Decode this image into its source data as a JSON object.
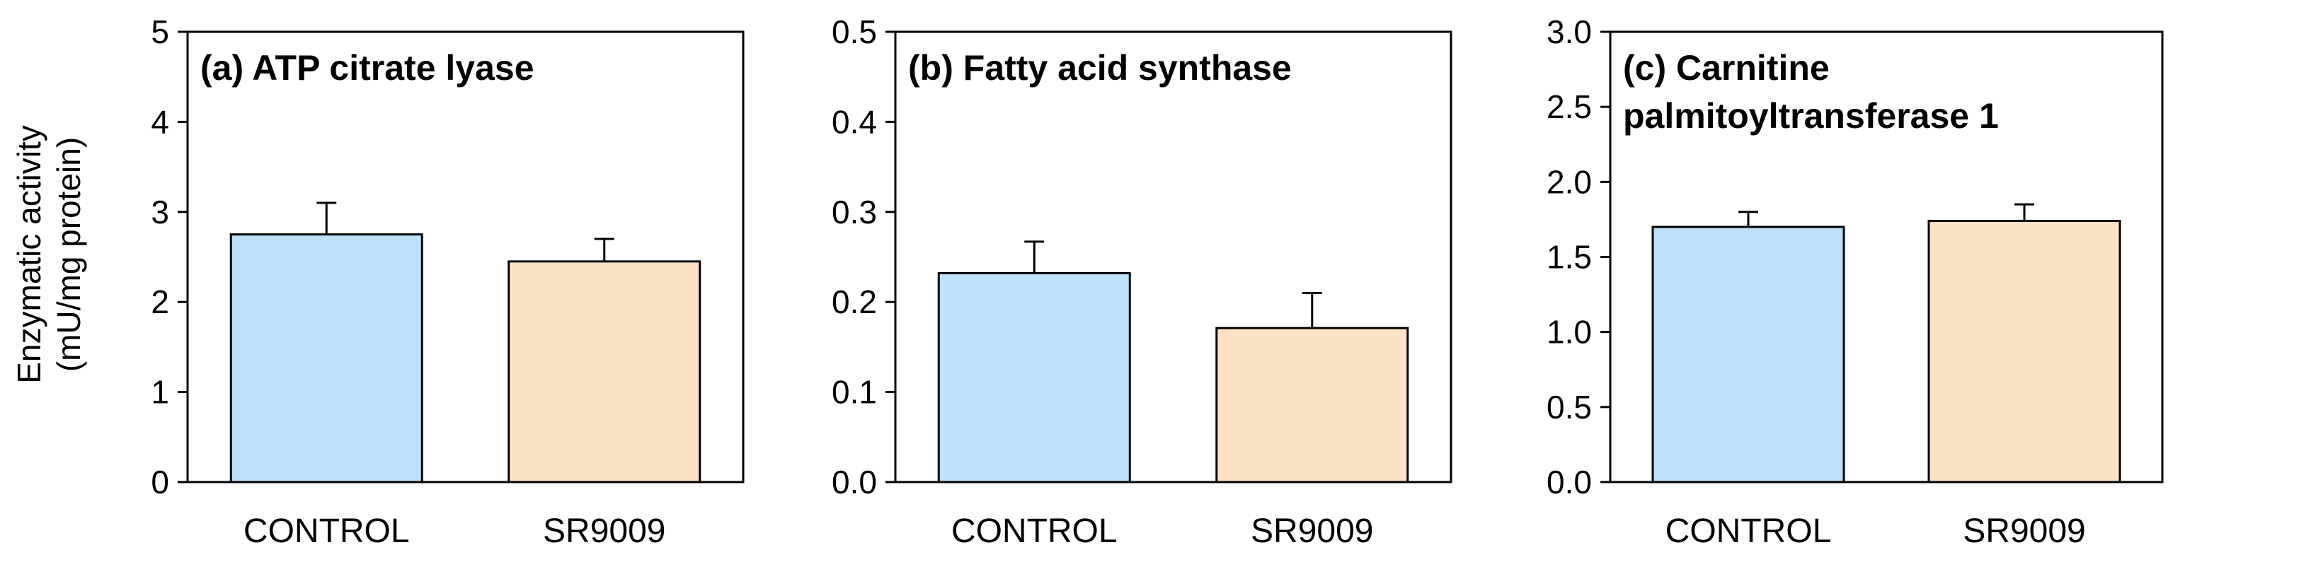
{
  "figure": {
    "ylabel_line1": "Enzymatic activity",
    "ylabel_line2": "(mU/mg protein)"
  },
  "chart_data": [
    {
      "type": "bar",
      "title_lines": [
        "(a) ATP citrate lyase"
      ],
      "categories": [
        "CONTROL",
        "SR9009"
      ],
      "values": [
        2.75,
        2.45
      ],
      "errors": [
        0.35,
        0.25
      ],
      "colors": [
        "#bde0fb",
        "#fde2c6"
      ],
      "ylim": [
        0,
        5
      ],
      "yticks": [
        0,
        1,
        2,
        3,
        4,
        5
      ],
      "ytick_labels": [
        "0",
        "1",
        "2",
        "3",
        "4",
        "5"
      ],
      "grid": false
    },
    {
      "type": "bar",
      "title_lines": [
        "(b) Fatty acid synthase"
      ],
      "categories": [
        "CONTROL",
        "SR9009"
      ],
      "values": [
        0.232,
        0.171
      ],
      "errors": [
        0.035,
        0.039
      ],
      "colors": [
        "#bde0fb",
        "#fde2c6"
      ],
      "ylim": [
        0,
        0.5
      ],
      "yticks": [
        0,
        0.1,
        0.2,
        0.3,
        0.4,
        0.5
      ],
      "ytick_labels": [
        "0.0",
        "0.1",
        "0.2",
        "0.3",
        "0.4",
        "0.5"
      ],
      "grid": false
    },
    {
      "type": "bar",
      "title_lines": [
        "(c) Carnitine",
        "palmitoyltransferase 1"
      ],
      "categories": [
        "CONTROL",
        "SR9009"
      ],
      "values": [
        1.7,
        1.74
      ],
      "errors": [
        0.1,
        0.11
      ],
      "colors": [
        "#bde0fb",
        "#fde2c6"
      ],
      "ylim": [
        0,
        3
      ],
      "yticks": [
        0,
        0.5,
        1,
        1.5,
        2,
        2.5,
        3
      ],
      "ytick_labels": [
        "0.0",
        "0.5",
        "1.0",
        "1.5",
        "2.0",
        "2.5",
        "3.0"
      ],
      "grid": false
    }
  ]
}
